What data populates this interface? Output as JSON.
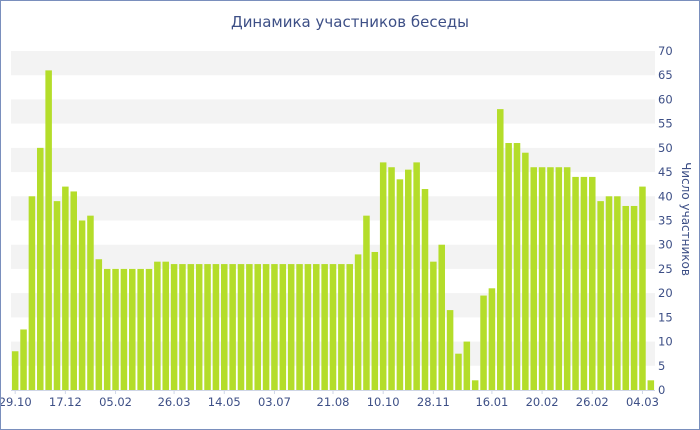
{
  "chart_data": {
    "type": "bar",
    "title": "Динамика участников беседы",
    "ylabel": "Число участников",
    "xlabel": "",
    "ylim": [
      0,
      70
    ],
    "y_ticks": [
      0,
      5,
      10,
      15,
      20,
      25,
      30,
      35,
      40,
      45,
      50,
      55,
      60,
      65,
      70
    ],
    "y_axis_side": "right",
    "grid": "alternating horizontal bands",
    "bar_color": "#b4dd2a",
    "band_color": "#f3f3f3",
    "text_color": "#3d4f86",
    "x_tick_labels": [
      "29.10",
      "17.12",
      "05.02",
      "26.03",
      "14.05",
      "03.07",
      "21.08",
      "10.10",
      "28.11",
      "16.01",
      "20.02",
      "26.02",
      "04.03"
    ],
    "x_tick_bar_index": [
      0,
      6,
      12,
      19,
      25,
      31,
      38,
      44,
      50,
      57,
      63,
      69,
      75
    ],
    "values": [
      8,
      12.5,
      40,
      50,
      66,
      39,
      42,
      41,
      35,
      36,
      27,
      25,
      25,
      25,
      25,
      25,
      25,
      26.5,
      26.5,
      26,
      26,
      26,
      26,
      26,
      26,
      26,
      26,
      26,
      26,
      26,
      26,
      26,
      26,
      26,
      26,
      26,
      26,
      26,
      26,
      26,
      26,
      28,
      36,
      28.5,
      47,
      46,
      43.5,
      45.5,
      47,
      41.5,
      26.5,
      30,
      16.5,
      7.5,
      10,
      2,
      19.5,
      21,
      58,
      51,
      51,
      49,
      46,
      46,
      46,
      46,
      46,
      44,
      44,
      44,
      39,
      40,
      40,
      38,
      38,
      42,
      2
    ]
  }
}
